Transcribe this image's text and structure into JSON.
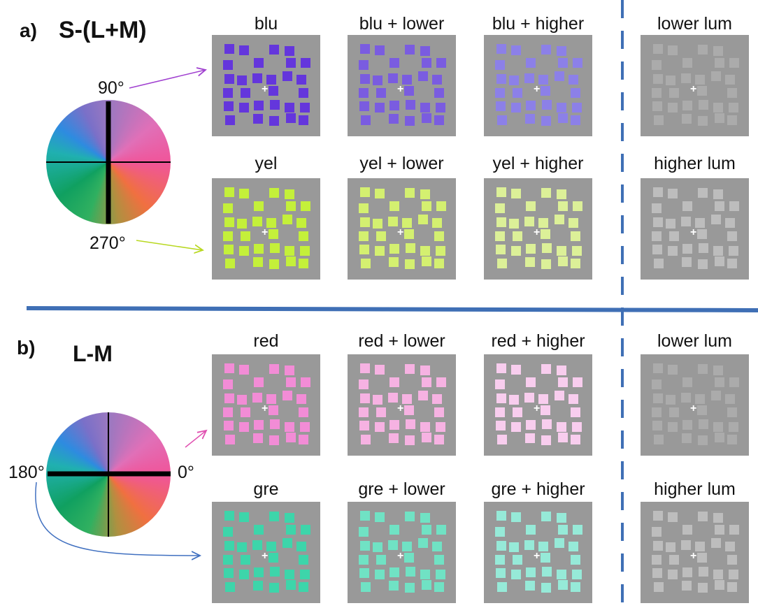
{
  "panels": [
    {
      "label": "a)",
      "title": "S-(L+M)",
      "angles": [
        "90°",
        "270°"
      ],
      "rows": [
        [
          "blu",
          "blu + lower",
          "blu + higher",
          "lower lum"
        ],
        [
          "yel",
          "yel + lower",
          "yel + higher",
          "higher lum"
        ]
      ]
    },
    {
      "label": "b)",
      "title": "L-M",
      "angles": [
        "180°",
        "0°"
      ],
      "rows": [
        [
          "red",
          "red + lower",
          "red + higher",
          "lower lum"
        ],
        [
          "gre",
          "gre + lower",
          "gre + higher",
          "higher lum"
        ]
      ]
    }
  ]
}
